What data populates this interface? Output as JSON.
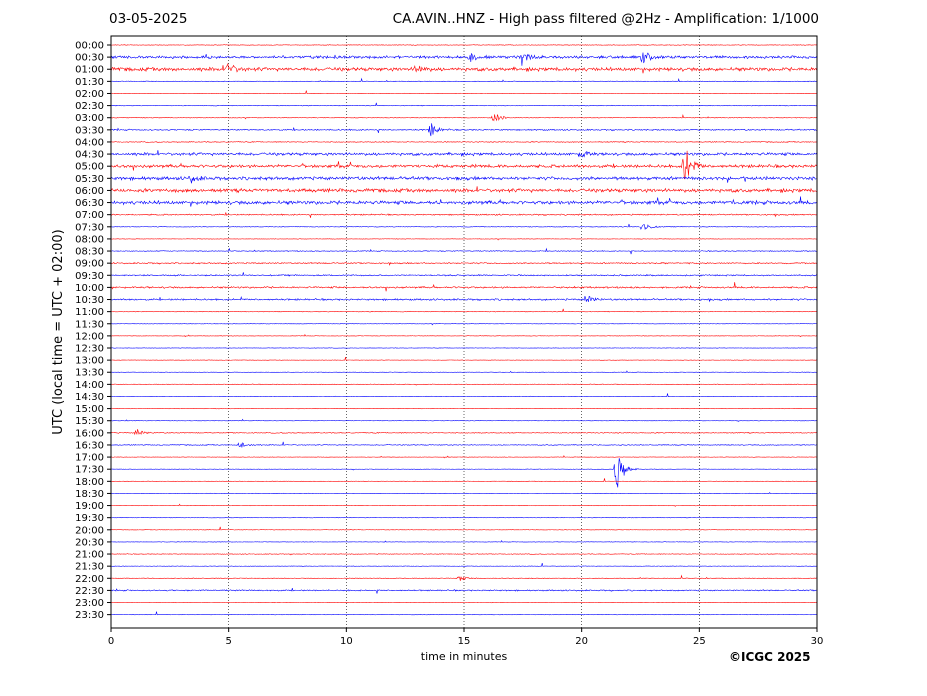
{
  "header": {
    "date": "03-05-2025",
    "title": "CA.AVIN..HNZ - High pass filtered @2Hz - Amplification: 1/1000"
  },
  "footer": {
    "copyright": "©ICGC 2025"
  },
  "chart_data": {
    "type": "line",
    "title": "CA.AVIN..HNZ - High pass filtered @2Hz - Amplification: 1/1000",
    "xlabel": "time in minutes",
    "ylabel": "UTC (local time = UTC + 02:00)",
    "xlim": [
      0,
      30
    ],
    "x_ticks": [
      0,
      5,
      10,
      15,
      20,
      25,
      30
    ],
    "vertical_gridlines_dotted": [
      5,
      10,
      15,
      20,
      25
    ],
    "trace_colors": [
      "#ff0000",
      "#0000ff"
    ],
    "rows": [
      "00:00",
      "00:30",
      "01:00",
      "01:30",
      "02:00",
      "02:30",
      "03:00",
      "03:30",
      "04:00",
      "04:30",
      "05:00",
      "05:30",
      "06:00",
      "06:30",
      "07:00",
      "07:30",
      "08:00",
      "08:30",
      "09:00",
      "09:30",
      "10:00",
      "10:30",
      "11:00",
      "11:30",
      "12:00",
      "12:30",
      "13:00",
      "13:30",
      "14:00",
      "14:30",
      "15:00",
      "15:30",
      "16:00",
      "16:30",
      "17:00",
      "17:30",
      "18:00",
      "18:30",
      "19:00",
      "19:30",
      "20:00",
      "20:30",
      "21:00",
      "21:30",
      "22:00",
      "22:30",
      "23:00",
      "23:30"
    ],
    "noise_level": [
      0.3,
      1.2,
      1.6,
      0.3,
      0.2,
      0.3,
      0.3,
      0.6,
      0.4,
      1.3,
      1.4,
      1.5,
      1.6,
      1.6,
      0.6,
      0.3,
      0.2,
      0.4,
      0.6,
      0.6,
      0.8,
      0.8,
      0.3,
      0.2,
      0.2,
      0.2,
      0.2,
      0.2,
      0.3,
      0.2,
      0.2,
      0.2,
      0.4,
      0.4,
      0.2,
      0.2,
      0.2,
      0.2,
      0.2,
      0.2,
      0.2,
      0.2,
      0.3,
      0.2,
      0.3,
      0.6,
      0.2,
      0.2
    ],
    "events": [
      {
        "row": "00:30",
        "minute": 22.6,
        "amplitude": 6
      },
      {
        "row": "00:30",
        "minute": 17.5,
        "amplitude": 5
      },
      {
        "row": "00:30",
        "minute": 15.3,
        "amplitude": 4
      },
      {
        "row": "01:00",
        "minute": 5.0,
        "amplitude": 6
      },
      {
        "row": "01:00",
        "minute": 13.0,
        "amplitude": 5
      },
      {
        "row": "03:00",
        "minute": 16.3,
        "amplitude": 6
      },
      {
        "row": "03:30",
        "minute": 13.6,
        "amplitude": 7
      },
      {
        "row": "04:30",
        "minute": 20.0,
        "amplitude": 4
      },
      {
        "row": "05:00",
        "minute": 24.4,
        "amplitude": 22
      },
      {
        "row": "05:30",
        "minute": 3.4,
        "amplitude": 4
      },
      {
        "row": "07:30",
        "minute": 22.6,
        "amplitude": 6
      },
      {
        "row": "10:30",
        "minute": 20.2,
        "amplitude": 5
      },
      {
        "row": "16:00",
        "minute": 1.1,
        "amplitude": 4
      },
      {
        "row": "16:30",
        "minute": 5.5,
        "amplitude": 4
      },
      {
        "row": "17:30",
        "minute": 21.5,
        "amplitude": 24
      },
      {
        "row": "22:00",
        "minute": 14.8,
        "amplitude": 3
      }
    ]
  }
}
